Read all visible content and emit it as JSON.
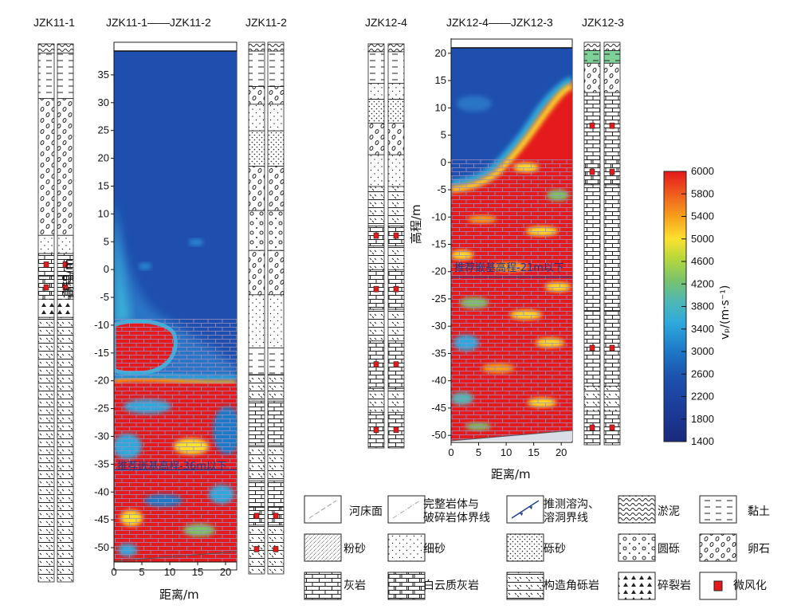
{
  "titles": {
    "bh_jzk11_1": "JZK11-1",
    "section1": "JZK11-1——JZK11-2",
    "bh_jzk11_2": "JZK11-2",
    "bh_jzk12_4": "JZK12-4",
    "section2": "JZK12-4——JZK12-3",
    "bh_jzk12_3": "JZK12-3"
  },
  "chart_data": [
    {
      "type": "heatmap",
      "title": "JZK11-1——JZK11-2",
      "xlabel": "距离/m",
      "ylabel": "高程/m",
      "xlim": [
        0,
        22
      ],
      "ylim": [
        -52,
        39
      ],
      "xticks": [
        0,
        5,
        10,
        15,
        20
      ],
      "yticks": [
        -50,
        -45,
        -40,
        -35,
        -30,
        -25,
        -20,
        -15,
        -10,
        -5,
        0,
        5,
        10,
        15,
        20,
        25,
        30,
        35
      ],
      "annotation": "推荐嵌基高程-36m以下",
      "annotation_elevation": -36,
      "velocity_zones": [
        {
          "material": "low_velocity",
          "vp": 1600,
          "from_elevation": 38,
          "to_elevation": -20
        },
        {
          "material": "limestone",
          "vp": 5800,
          "from_elevation": -9,
          "to_elevation": -19,
          "x": [
            0,
            11
          ]
        },
        {
          "material": "limestone",
          "vp": 5800,
          "from_elevation": -20,
          "to_elevation": -52
        }
      ]
    },
    {
      "type": "heatmap",
      "title": "JZK12-4——JZK12-3",
      "xlabel": "距离/m",
      "ylabel": "高程/m",
      "xlim": [
        0,
        22
      ],
      "ylim": [
        -51,
        21
      ],
      "xticks": [
        0,
        5,
        10,
        15,
        20
      ],
      "yticks": [
        -50,
        -45,
        -40,
        -35,
        -30,
        -25,
        -20,
        -15,
        -10,
        -5,
        0,
        5,
        10,
        15,
        20
      ],
      "annotation": "推荐嵌基高程-21m以下",
      "annotation_elevation": -21,
      "velocity_zones": [
        {
          "material": "low_velocity",
          "vp": 1600,
          "from_elevation": 19,
          "to_elevation": -4
        },
        {
          "material": "limestone",
          "vp": 5800,
          "from_elevation": -4,
          "to_elevation": -51
        }
      ]
    }
  ],
  "colorbar": {
    "label": "vₚ/(m·s⁻¹)",
    "ticks": [
      6000,
      5800,
      5400,
      5000,
      4600,
      4200,
      3800,
      3400,
      3000,
      2600,
      2200,
      1800,
      1400
    ],
    "colors": [
      "#e41a1c",
      "#e8381f",
      "#f06a1e",
      "#f7a21d",
      "#fde12f",
      "#b8d83b",
      "#7cc46a",
      "#4fb8b4",
      "#2fa9dc",
      "#1f7ac8",
      "#1c52ad",
      "#1b3c99",
      "#1a2a7c"
    ]
  },
  "legend": [
    {
      "label": "河床面",
      "pattern": "riverbed-line"
    },
    {
      "label": "完整岩体与\n破碎岩体界线",
      "pattern": "dash-dot-line"
    },
    {
      "label": "推测溶沟、\n溶洞界线",
      "pattern": "blue-dashed-line"
    },
    {
      "label": "淤泥",
      "pattern": "silt"
    },
    {
      "label": "黏土",
      "pattern": "clay"
    },
    {
      "label": "粉砂",
      "pattern": "fine-silt"
    },
    {
      "label": "细砂",
      "pattern": "fine-sand"
    },
    {
      "label": "砾砂",
      "pattern": "gravel-sand"
    },
    {
      "label": "圆砾",
      "pattern": "round-gravel"
    },
    {
      "label": "卵石",
      "pattern": "pebble"
    },
    {
      "label": "灰岩",
      "pattern": "limestone"
    },
    {
      "label": "白云质灰岩",
      "pattern": "dolomitic-limestone"
    },
    {
      "label": "构造角砾岩",
      "pattern": "tectonic-breccia"
    },
    {
      "label": "碎裂岩",
      "pattern": "cataclasite"
    },
    {
      "label": "微风化",
      "pattern": "slight-weathering"
    }
  ],
  "boreholes": {
    "JZK11-1": [
      {
        "lith": "silt",
        "thickness": 2
      },
      {
        "lith": "clay",
        "thickness": 10
      },
      {
        "lith": "pebble",
        "thickness": 30
      },
      {
        "lith": "fine_sand",
        "thickness": 4
      },
      {
        "lith": "limestone",
        "thickness": 5,
        "weathering": true
      },
      {
        "lith": "dolomitic_limestone",
        "thickness": 5,
        "weathering": true
      },
      {
        "lith": "cataclasite",
        "thickness": 4
      },
      {
        "lith": "tectonic_breccia",
        "thickness": 58
      }
    ],
    "JZK11-2": [
      {
        "lith": "silt",
        "thickness": 2
      },
      {
        "lith": "clay",
        "thickness": 8
      },
      {
        "lith": "pebble",
        "thickness": 4
      },
      {
        "lith": "fine_sand",
        "thickness": 6
      },
      {
        "lith": "gravel_sand",
        "thickness": 8
      },
      {
        "lith": "pebble",
        "thickness": 10
      },
      {
        "lith": "round_gravel",
        "thickness": 9
      },
      {
        "lith": "pebble",
        "thickness": 10
      },
      {
        "lith": "fine_sand",
        "thickness": 12
      },
      {
        "lith": "clay",
        "thickness": 6
      },
      {
        "lith": "tectonic_breccia",
        "thickness": 6
      },
      {
        "lith": "limestone",
        "thickness": 10
      },
      {
        "lith": "tectonic_breccia",
        "thickness": 8
      },
      {
        "lith": "limestone",
        "thickness": 6
      },
      {
        "lith": "dolomitic_limestone",
        "thickness": 4,
        "weathering": true
      },
      {
        "lith": "tectonic_breccia",
        "thickness": 11,
        "weathering": true
      }
    ],
    "JZK12-4": [
      {
        "lith": "silt",
        "thickness": 2
      },
      {
        "lith": "clay",
        "thickness": 8
      },
      {
        "lith": "fine_sand",
        "thickness": 4
      },
      {
        "lith": "gravel_sand",
        "thickness": 6
      },
      {
        "lith": "pebble",
        "thickness": 8
      },
      {
        "lith": "fine_sand",
        "thickness": 8
      },
      {
        "lith": "tectonic_breccia",
        "thickness": 10
      },
      {
        "lith": "limestone",
        "thickness": 5,
        "weathering": true
      },
      {
        "lith": "tectonic_breccia",
        "thickness": 6
      },
      {
        "lith": "limestone",
        "thickness": 10,
        "weathering": true
      },
      {
        "lith": "tectonic_breccia",
        "thickness": 8
      },
      {
        "lith": "limestone",
        "thickness": 12,
        "weathering": true
      },
      {
        "lith": "tectonic_breccia",
        "thickness": 6
      },
      {
        "lith": "limestone",
        "thickness": 9,
        "weathering": true
      }
    ],
    "JZK12-3": [
      {
        "lith": "silt",
        "thickness": 2
      },
      {
        "lith": "clay_green",
        "thickness": 3
      },
      {
        "lith": "pebble",
        "thickness": 7
      },
      {
        "lith": "limestone",
        "thickness": 16,
        "weathering": true
      },
      {
        "lith": "dolomitic_limestone",
        "thickness": 6,
        "weathering": true
      },
      {
        "lith": "limestone",
        "thickness": 30
      },
      {
        "lith": "limestone",
        "thickness": 18,
        "weathering": true
      },
      {
        "lith": "tectonic_breccia",
        "thickness": 6
      },
      {
        "lith": "limestone",
        "thickness": 8,
        "weathering": true
      }
    ]
  }
}
